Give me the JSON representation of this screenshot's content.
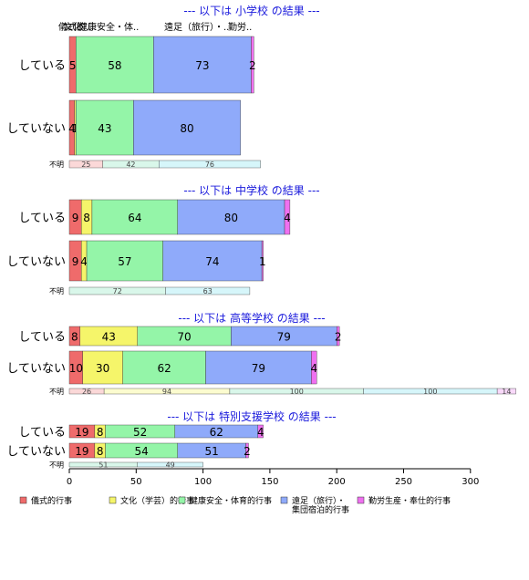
{
  "chart_data": {
    "type": "bar",
    "orientation": "horizontal",
    "stacked": true,
    "xlim": [
      0,
      300
    ],
    "x_ticks": [
      "0",
      "50",
      "100",
      "150",
      "200",
      "250",
      "300"
    ],
    "colors": [
      "#ef6b6b",
      "#f5f56a",
      "#94f5a8",
      "#8faafa",
      "#ef70f0"
    ],
    "legend": {
      "position": "bottom",
      "items": [
        [
          "儀式的行事"
        ],
        [
          "文化（学芸）的行事"
        ],
        [
          "健康安全・体育的行事"
        ],
        [
          "遠足（旅行）・",
          "集団宿泊的行事"
        ],
        [
          "勤労生産・奉仕的行事"
        ]
      ]
    },
    "overlapping_top_text": [
      "儀式的..",
      "文化（..",
      "健康安全・体..",
      "遠足（旅行）・..",
      "勤労.."
    ],
    "panels": [
      {
        "title": "--- 以下は 小学校 の結果 ---",
        "rows": [
          {
            "label": "している",
            "values": [
              5,
              0,
              58,
              73,
              2
            ]
          },
          {
            "label": "していない",
            "values": [
              4,
              1,
              43,
              80,
              0
            ]
          }
        ],
        "unknown": {
          "label": "不明",
          "values": [
            25,
            0,
            42,
            76,
            0
          ]
        }
      },
      {
        "title": "--- 以下は 中学校 の結果 ---",
        "rows": [
          {
            "label": "している",
            "values": [
              9,
              8,
              64,
              80,
              4
            ]
          },
          {
            "label": "していない",
            "values": [
              9,
              4,
              57,
              74,
              1
            ]
          }
        ],
        "unknown": {
          "label": "不明",
          "values": [
            0,
            0,
            72,
            63,
            0
          ]
        }
      },
      {
        "title": "--- 以下は 高等学校 の結果 ---",
        "rows": [
          {
            "label": "している",
            "values": [
              8,
              43,
              70,
              79,
              2
            ]
          },
          {
            "label": "していない",
            "values": [
              10,
              30,
              62,
              79,
              4
            ]
          }
        ],
        "unknown": {
          "label": "不明",
          "values": [
            26,
            94,
            100,
            100,
            14
          ]
        }
      },
      {
        "title": "--- 以下は 特別支援学校 の結果 ---",
        "rows": [
          {
            "label": "している",
            "values": [
              19,
              8,
              52,
              62,
              4
            ]
          },
          {
            "label": "していない",
            "values": [
              19,
              8,
              54,
              51,
              2
            ]
          }
        ],
        "unknown": {
          "label": "不明",
          "values": [
            0,
            0,
            51,
            49,
            0
          ]
        }
      }
    ]
  }
}
